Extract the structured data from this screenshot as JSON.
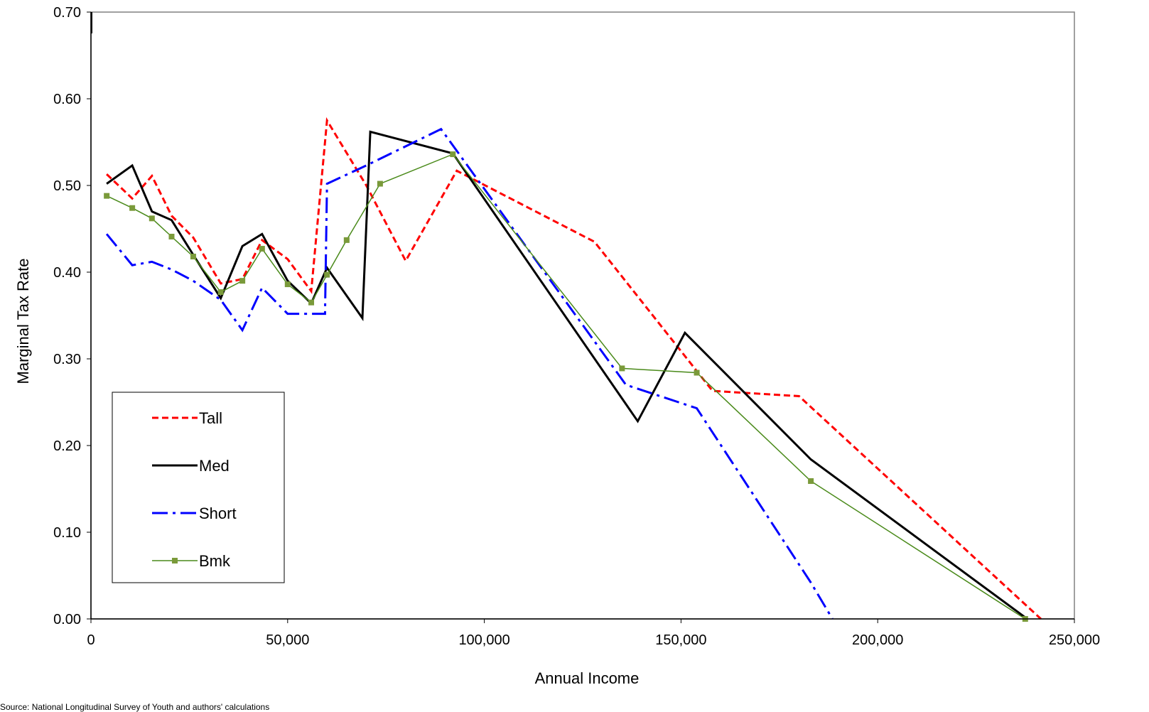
{
  "chart_data": {
    "type": "line",
    "title": "",
    "xlabel": "Annual Income",
    "ylabel": "Marginal Tax Rate",
    "xlim": [
      0,
      250000
    ],
    "ylim": [
      0,
      0.7
    ],
    "x_ticks": [
      "0",
      "50,000",
      "100,000",
      "150,000",
      "200,000",
      "250,000"
    ],
    "y_ticks": [
      "0.00",
      "0.10",
      "0.20",
      "0.30",
      "0.40",
      "0.50",
      "0.60",
      "0.70"
    ],
    "grid": false,
    "legend_position": "left",
    "series": [
      {
        "name": "Tall",
        "color": "#ff0000",
        "style": "dashed",
        "points": [
          [
            4000,
            0.513
          ],
          [
            10500,
            0.485
          ],
          [
            15500,
            0.511
          ],
          [
            20500,
            0.465
          ],
          [
            26000,
            0.44
          ],
          [
            33000,
            0.387
          ],
          [
            38500,
            0.392
          ],
          [
            43500,
            0.437
          ],
          [
            50000,
            0.415
          ],
          [
            56000,
            0.378
          ],
          [
            60000,
            0.575
          ],
          [
            70000,
            0.5
          ],
          [
            80000,
            0.413
          ],
          [
            93000,
            0.517
          ],
          [
            128000,
            0.435
          ],
          [
            158000,
            0.263
          ],
          [
            180000,
            0.257
          ],
          [
            241500,
            0.0
          ]
        ]
      },
      {
        "name": "Med",
        "color": "#000000",
        "style": "solid",
        "points": [
          [
            4000,
            0.502
          ],
          [
            10500,
            0.523
          ],
          [
            15500,
            0.47
          ],
          [
            20500,
            0.46
          ],
          [
            26000,
            0.42
          ],
          [
            33000,
            0.37
          ],
          [
            38500,
            0.43
          ],
          [
            43500,
            0.444
          ],
          [
            50000,
            0.39
          ],
          [
            56000,
            0.364
          ],
          [
            60000,
            0.405
          ],
          [
            69000,
            0.347
          ],
          [
            71000,
            0.562
          ],
          [
            92000,
            0.537
          ],
          [
            139000,
            0.228
          ],
          [
            151000,
            0.33
          ],
          [
            183000,
            0.184
          ],
          [
            238000,
            0.0
          ]
        ]
      },
      {
        "name": "Short",
        "color": "#0000ff",
        "style": "dash-dot",
        "points": [
          [
            4000,
            0.444
          ],
          [
            10500,
            0.408
          ],
          [
            15500,
            0.412
          ],
          [
            20500,
            0.403
          ],
          [
            26000,
            0.39
          ],
          [
            33000,
            0.368
          ],
          [
            38500,
            0.333
          ],
          [
            43500,
            0.382
          ],
          [
            50000,
            0.352
          ],
          [
            56000,
            0.352
          ],
          [
            59500,
            0.352
          ],
          [
            60000,
            0.502
          ],
          [
            70000,
            0.523
          ],
          [
            89000,
            0.565
          ],
          [
            93000,
            0.54
          ],
          [
            136000,
            0.27
          ],
          [
            154000,
            0.243
          ],
          [
            183000,
            0.042
          ],
          [
            188500,
            0.0
          ]
        ]
      },
      {
        "name": "Bmk",
        "color": "#4a8a1a",
        "marker_color": "#7a9a3a",
        "style": "solid-marker",
        "points": [
          [
            4000,
            0.488
          ],
          [
            10500,
            0.474
          ],
          [
            15500,
            0.462
          ],
          [
            20500,
            0.441
          ],
          [
            26000,
            0.418
          ],
          [
            33000,
            0.377
          ],
          [
            38500,
            0.39
          ],
          [
            43500,
            0.427
          ],
          [
            50000,
            0.386
          ],
          [
            56000,
            0.365
          ],
          [
            60000,
            0.397
          ],
          [
            65000,
            0.437
          ],
          [
            73500,
            0.502
          ],
          [
            92000,
            0.536
          ],
          [
            135000,
            0.289
          ],
          [
            154000,
            0.284
          ],
          [
            183000,
            0.159
          ],
          [
            237500,
            0.0
          ]
        ]
      }
    ]
  },
  "source_text": "Source: National Longitudinal Survey of Youth and authors' calculations"
}
